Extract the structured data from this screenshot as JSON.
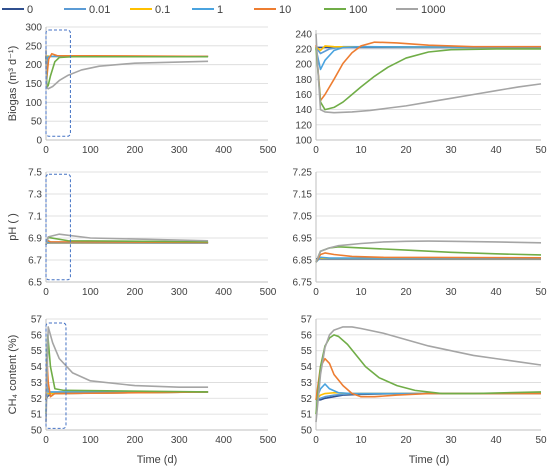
{
  "legend": {
    "placement": "top",
    "entries": [
      {
        "name": "0",
        "color": "#2f4f8f"
      },
      {
        "name": "0.01",
        "color": "#5b9bd5"
      },
      {
        "name": "0.1",
        "color": "#ffc000"
      },
      {
        "name": "1",
        "color": "#4aa3df"
      },
      {
        "name": "10",
        "color": "#ed7d31"
      },
      {
        "name": "100",
        "color": "#70ad47"
      },
      {
        "name": "1000",
        "color": "#a5a5a5"
      }
    ]
  },
  "chart_data": [
    {
      "id": "biogas-full",
      "type": "line",
      "ylabel": "Biogas (m³ d⁻¹)",
      "xlim": [
        0,
        500
      ],
      "ylim": [
        0,
        300
      ],
      "xticks": [
        0,
        100,
        200,
        300,
        400,
        500
      ],
      "yticks": [
        0,
        50,
        100,
        150,
        200,
        250,
        300
      ],
      "grid": true,
      "highlight_box": {
        "x": [
          0,
          55
        ],
        "y": [
          10,
          292
        ]
      },
      "series": [
        {
          "name": "0",
          "x": [
            0,
            365
          ],
          "y": [
            222,
            222
          ]
        },
        {
          "name": "0.01",
          "x": [
            0,
            1,
            5,
            10,
            365
          ],
          "y": [
            222,
            214,
            222,
            222,
            222
          ]
        },
        {
          "name": "0.1",
          "x": [
            0,
            1,
            3,
            10,
            365
          ],
          "y": [
            223,
            220,
            223,
            222,
            222
          ]
        },
        {
          "name": "1",
          "x": [
            0,
            1,
            3,
            6,
            365
          ],
          "y": [
            220,
            193,
            218,
            222,
            222
          ]
        },
        {
          "name": "10",
          "x": [
            0,
            1,
            3,
            6,
            13,
            25,
            365
          ],
          "y": [
            225,
            152,
            180,
            215,
            229,
            224,
            222
          ]
        },
        {
          "name": "100",
          "x": [
            0,
            2,
            5,
            10,
            20,
            30,
            60,
            365
          ],
          "y": [
            222,
            140,
            145,
            170,
            208,
            219,
            221,
            221
          ]
        },
        {
          "name": "1000",
          "x": [
            0,
            1,
            5,
            15,
            30,
            50,
            80,
            120,
            200,
            365
          ],
          "y": [
            240,
            140,
            136,
            142,
            158,
            172,
            186,
            196,
            204,
            209
          ]
        }
      ]
    },
    {
      "id": "biogas-zoom",
      "type": "line",
      "ylabel": "",
      "xlim": [
        0,
        50
      ],
      "ylim": [
        100,
        245
      ],
      "xticks": [
        0,
        10,
        20,
        30,
        40,
        50
      ],
      "yticks": [
        100,
        120,
        140,
        160,
        180,
        200,
        220,
        240
      ],
      "grid": true,
      "series": [
        {
          "name": "0",
          "x": [
            0,
            50
          ],
          "y": [
            222,
            222
          ]
        },
        {
          "name": "0.01",
          "x": [
            0,
            1,
            3,
            6,
            50
          ],
          "y": [
            222,
            214,
            220,
            223,
            222
          ]
        },
        {
          "name": "0.1",
          "x": [
            0,
            1,
            2,
            4,
            50
          ],
          "y": [
            223,
            218,
            224,
            223,
            222
          ]
        },
        {
          "name": "1",
          "x": [
            0,
            1,
            2,
            4,
            6,
            10,
            50
          ],
          "y": [
            220,
            193,
            205,
            218,
            222,
            223,
            222
          ]
        },
        {
          "name": "10",
          "x": [
            0,
            1,
            2,
            4,
            6,
            8,
            10,
            13,
            18,
            25,
            35,
            50
          ],
          "y": [
            225,
            152,
            160,
            180,
            201,
            215,
            224,
            229,
            228,
            225,
            223,
            223
          ]
        },
        {
          "name": "100",
          "x": [
            0,
            1,
            2,
            4,
            6,
            8,
            10,
            13,
            16,
            20,
            25,
            30,
            40,
            50
          ],
          "y": [
            222,
            150,
            140,
            143,
            150,
            160,
            170,
            184,
            196,
            208,
            216,
            219,
            220,
            220
          ]
        },
        {
          "name": "1000",
          "x": [
            0,
            0.5,
            1,
            2,
            4,
            8,
            12,
            16,
            20,
            25,
            30,
            35,
            40,
            45,
            50
          ],
          "y": [
            240,
            185,
            140,
            137,
            136,
            137,
            139,
            142,
            145,
            150,
            155,
            160,
            165,
            170,
            174
          ]
        }
      ]
    },
    {
      "id": "ph-full",
      "type": "line",
      "ylabel": "pH ( )",
      "xlim": [
        0,
        500
      ],
      "ylim": [
        6.5,
        7.5
      ],
      "xticks": [
        0,
        100,
        200,
        300,
        400,
        500
      ],
      "yticks": [
        6.5,
        6.7,
        6.9,
        7.1,
        7.3,
        7.5
      ],
      "grid": true,
      "highlight_box": {
        "x": [
          0,
          55
        ],
        "y": [
          6.52,
          7.48
        ]
      },
      "series": [
        {
          "name": "0",
          "x": [
            0,
            365
          ],
          "y": [
            6.855,
            6.855
          ]
        },
        {
          "name": "0.01",
          "x": [
            0,
            365
          ],
          "y": [
            6.857,
            6.857
          ]
        },
        {
          "name": "0.1",
          "x": [
            0,
            365
          ],
          "y": [
            6.858,
            6.857
          ]
        },
        {
          "name": "1",
          "x": [
            0,
            2,
            365
          ],
          "y": [
            6.84,
            6.862,
            6.858
          ]
        },
        {
          "name": "10",
          "x": [
            0,
            2,
            10,
            365
          ],
          "y": [
            6.84,
            6.88,
            6.865,
            6.86
          ]
        },
        {
          "name": "100",
          "x": [
            0,
            5,
            50,
            365
          ],
          "y": [
            6.84,
            6.905,
            6.875,
            6.865
          ]
        },
        {
          "name": "1000",
          "x": [
            0,
            5,
            30,
            100,
            365
          ],
          "y": [
            6.84,
            6.91,
            6.935,
            6.9,
            6.875
          ]
        }
      ]
    },
    {
      "id": "ph-zoom",
      "type": "line",
      "ylabel": "",
      "xlim": [
        0,
        50
      ],
      "ylim": [
        6.75,
        7.25
      ],
      "xticks": [
        0,
        10,
        20,
        30,
        40,
        50
      ],
      "yticks": [
        6.75,
        6.85,
        6.95,
        7.05,
        7.15,
        7.25
      ],
      "grid": true,
      "series": [
        {
          "name": "0",
          "x": [
            0,
            50
          ],
          "y": [
            6.855,
            6.855
          ]
        },
        {
          "name": "0.01",
          "x": [
            0,
            1,
            50
          ],
          "y": [
            6.85,
            6.857,
            6.857
          ]
        },
        {
          "name": "0.1",
          "x": [
            0,
            1,
            50
          ],
          "y": [
            6.85,
            6.858,
            6.857
          ]
        },
        {
          "name": "1",
          "x": [
            0,
            1,
            3,
            50
          ],
          "y": [
            6.84,
            6.862,
            6.859,
            6.858
          ]
        },
        {
          "name": "10",
          "x": [
            0,
            1,
            2,
            4,
            8,
            15,
            50
          ],
          "y": [
            6.84,
            6.875,
            6.882,
            6.875,
            6.866,
            6.862,
            6.86
          ]
        },
        {
          "name": "100",
          "x": [
            0,
            1,
            3,
            5,
            10,
            20,
            30,
            40,
            50
          ],
          "y": [
            6.84,
            6.89,
            6.905,
            6.91,
            6.905,
            6.895,
            6.885,
            6.878,
            6.873
          ]
        },
        {
          "name": "1000",
          "x": [
            0,
            1,
            3,
            5,
            10,
            15,
            20,
            25,
            30,
            40,
            50
          ],
          "y": [
            6.84,
            6.89,
            6.905,
            6.915,
            6.925,
            6.932,
            6.935,
            6.936,
            6.935,
            6.932,
            6.928
          ]
        }
      ]
    },
    {
      "id": "ch4-full",
      "type": "line",
      "ylabel": "CH₄ content (%)",
      "xlim": [
        0,
        500
      ],
      "ylim": [
        50,
        57
      ],
      "xticks": [
        0,
        100,
        200,
        300,
        400,
        500
      ],
      "yticks": [
        50,
        51,
        52,
        53,
        54,
        55,
        56,
        57
      ],
      "grid": true,
      "highlight_box": {
        "x": [
          0,
          45
        ],
        "y": [
          50.1,
          56.75
        ]
      },
      "series": [
        {
          "name": "0",
          "x": [
            0,
            3,
            10,
            365
          ],
          "y": [
            51.9,
            52.1,
            52.3,
            52.4
          ]
        },
        {
          "name": "0.01",
          "x": [
            0,
            3,
            10,
            365
          ],
          "y": [
            52.0,
            52.2,
            52.3,
            52.4
          ]
        },
        {
          "name": "0.1",
          "x": [
            0,
            2,
            10,
            365
          ],
          "y": [
            51.9,
            52.3,
            52.3,
            52.4
          ]
        },
        {
          "name": "1",
          "x": [
            0,
            2,
            5,
            365
          ],
          "y": [
            51.9,
            52.9,
            52.4,
            52.4
          ]
        },
        {
          "name": "10",
          "x": [
            0,
            2,
            5,
            10,
            20,
            365
          ],
          "y": [
            51.9,
            54.5,
            53.0,
            52.1,
            52.3,
            52.4
          ]
        },
        {
          "name": "100",
          "x": [
            0,
            4,
            10,
            20,
            40,
            365
          ],
          "y": [
            51.0,
            56.0,
            54.0,
            52.6,
            52.5,
            52.4
          ]
        },
        {
          "name": "1000",
          "x": [
            0,
            5,
            15,
            30,
            60,
            100,
            200,
            300,
            365
          ],
          "y": [
            50.5,
            56.5,
            55.5,
            54.5,
            53.6,
            53.1,
            52.8,
            52.7,
            52.7
          ]
        }
      ]
    },
    {
      "id": "ch4-zoom",
      "type": "line",
      "ylabel": "",
      "xlim": [
        0,
        50
      ],
      "ylim": [
        50,
        57
      ],
      "xticks": [
        0,
        10,
        20,
        30,
        40,
        50
      ],
      "yticks": [
        50,
        51,
        52,
        53,
        54,
        55,
        56,
        57
      ],
      "grid": true,
      "series": [
        {
          "name": "0",
          "x": [
            0,
            1,
            2,
            4,
            6,
            10,
            20,
            35,
            50
          ],
          "y": [
            51.9,
            51.9,
            52.0,
            52.1,
            52.2,
            52.25,
            52.3,
            52.3,
            52.3
          ]
        },
        {
          "name": "0.01",
          "x": [
            0,
            1,
            2,
            4,
            8,
            15,
            50
          ],
          "y": [
            51.9,
            52.0,
            52.1,
            52.2,
            52.3,
            52.3,
            52.3
          ]
        },
        {
          "name": "0.1",
          "x": [
            0,
            1,
            2,
            4,
            8,
            50
          ],
          "y": [
            51.9,
            52.2,
            52.3,
            52.35,
            52.3,
            52.3
          ]
        },
        {
          "name": "1",
          "x": [
            0,
            1,
            2,
            3,
            5,
            8,
            50
          ],
          "y": [
            51.9,
            52.6,
            52.9,
            52.6,
            52.35,
            52.3,
            52.3
          ]
        },
        {
          "name": "10",
          "x": [
            0,
            1,
            2,
            3,
            4,
            6,
            8,
            10,
            13,
            18,
            25,
            50
          ],
          "y": [
            51.9,
            54.0,
            54.5,
            54.2,
            53.5,
            52.8,
            52.3,
            52.1,
            52.1,
            52.2,
            52.3,
            52.3
          ]
        },
        {
          "name": "100",
          "x": [
            0,
            1,
            2,
            3,
            4,
            5,
            7,
            9,
            11,
            14,
            18,
            22,
            28,
            35,
            50
          ],
          "y": [
            51.0,
            54.0,
            55.3,
            55.8,
            56.0,
            55.9,
            55.4,
            54.7,
            54.0,
            53.3,
            52.8,
            52.5,
            52.3,
            52.3,
            52.4
          ]
        },
        {
          "name": "1000",
          "x": [
            0,
            1,
            2,
            3,
            4,
            6,
            8,
            10,
            15,
            20,
            25,
            30,
            35,
            40,
            45,
            50
          ],
          "y": [
            50.5,
            53.5,
            55.2,
            56.0,
            56.3,
            56.5,
            56.5,
            56.4,
            56.1,
            55.7,
            55.3,
            55.0,
            54.7,
            54.5,
            54.3,
            54.1
          ]
        }
      ]
    }
  ],
  "xlabels": {
    "left": "Time (d)",
    "right": "Time (d)"
  }
}
